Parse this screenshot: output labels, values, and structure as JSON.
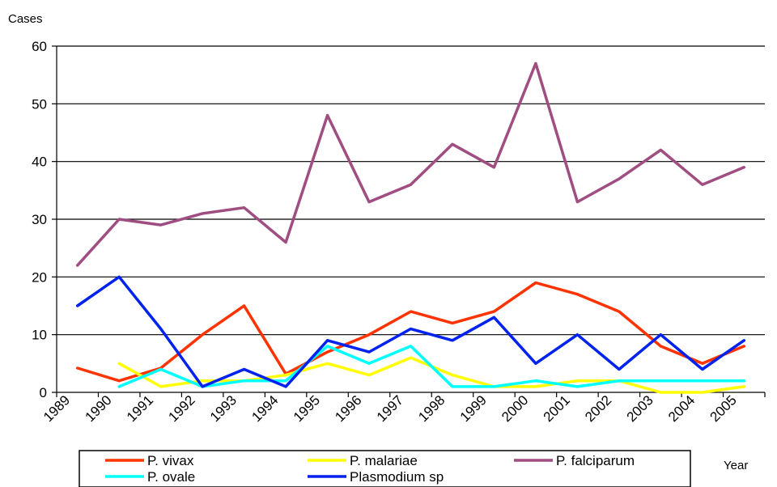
{
  "chart_data": {
    "type": "line",
    "title": "",
    "ylabel": "Cases",
    "xlabel": "Year",
    "ylim": [
      0,
      60
    ],
    "y_ticks": [
      0,
      10,
      20,
      30,
      40,
      50,
      60
    ],
    "categories": [
      "1989",
      "1990",
      "1991",
      "1992",
      "1993",
      "1994",
      "1995",
      "1996",
      "1997",
      "1998",
      "1999",
      "2000",
      "2001",
      "2002",
      "2003",
      "2004",
      "2005"
    ],
    "grid": true,
    "legend_position": "bottom",
    "series": [
      {
        "name": "P. vivax",
        "color": "#ff3300",
        "values": [
          4.2,
          2,
          4.2,
          10,
          15,
          3.2,
          7,
          10,
          14,
          12,
          14,
          19,
          17,
          14,
          8,
          5,
          8
        ]
      },
      {
        "name": "P. malariae",
        "color": "#ffff00",
        "values": [
          null,
          5,
          1,
          2,
          2,
          3,
          5,
          3,
          6,
          3,
          1,
          1,
          2,
          2,
          0,
          0,
          1
        ]
      },
      {
        "name": "P. falciparum",
        "color": "#a04d82",
        "values": [
          22,
          30,
          29,
          31,
          32,
          26,
          48,
          33,
          36,
          43,
          39,
          57,
          33,
          37,
          42,
          36,
          39
        ]
      },
      {
        "name": "P. ovale",
        "color": "#00ffff",
        "values": [
          null,
          1,
          4,
          1,
          2,
          2,
          8,
          5,
          8,
          1,
          1,
          2,
          1,
          2,
          2,
          2,
          2
        ]
      },
      {
        "name": "Plasmodium sp",
        "color": "#0022ee",
        "values": [
          15,
          20,
          11,
          1,
          4,
          1,
          9,
          7,
          11,
          9,
          13,
          5,
          10,
          4,
          10,
          4,
          9
        ]
      }
    ]
  }
}
